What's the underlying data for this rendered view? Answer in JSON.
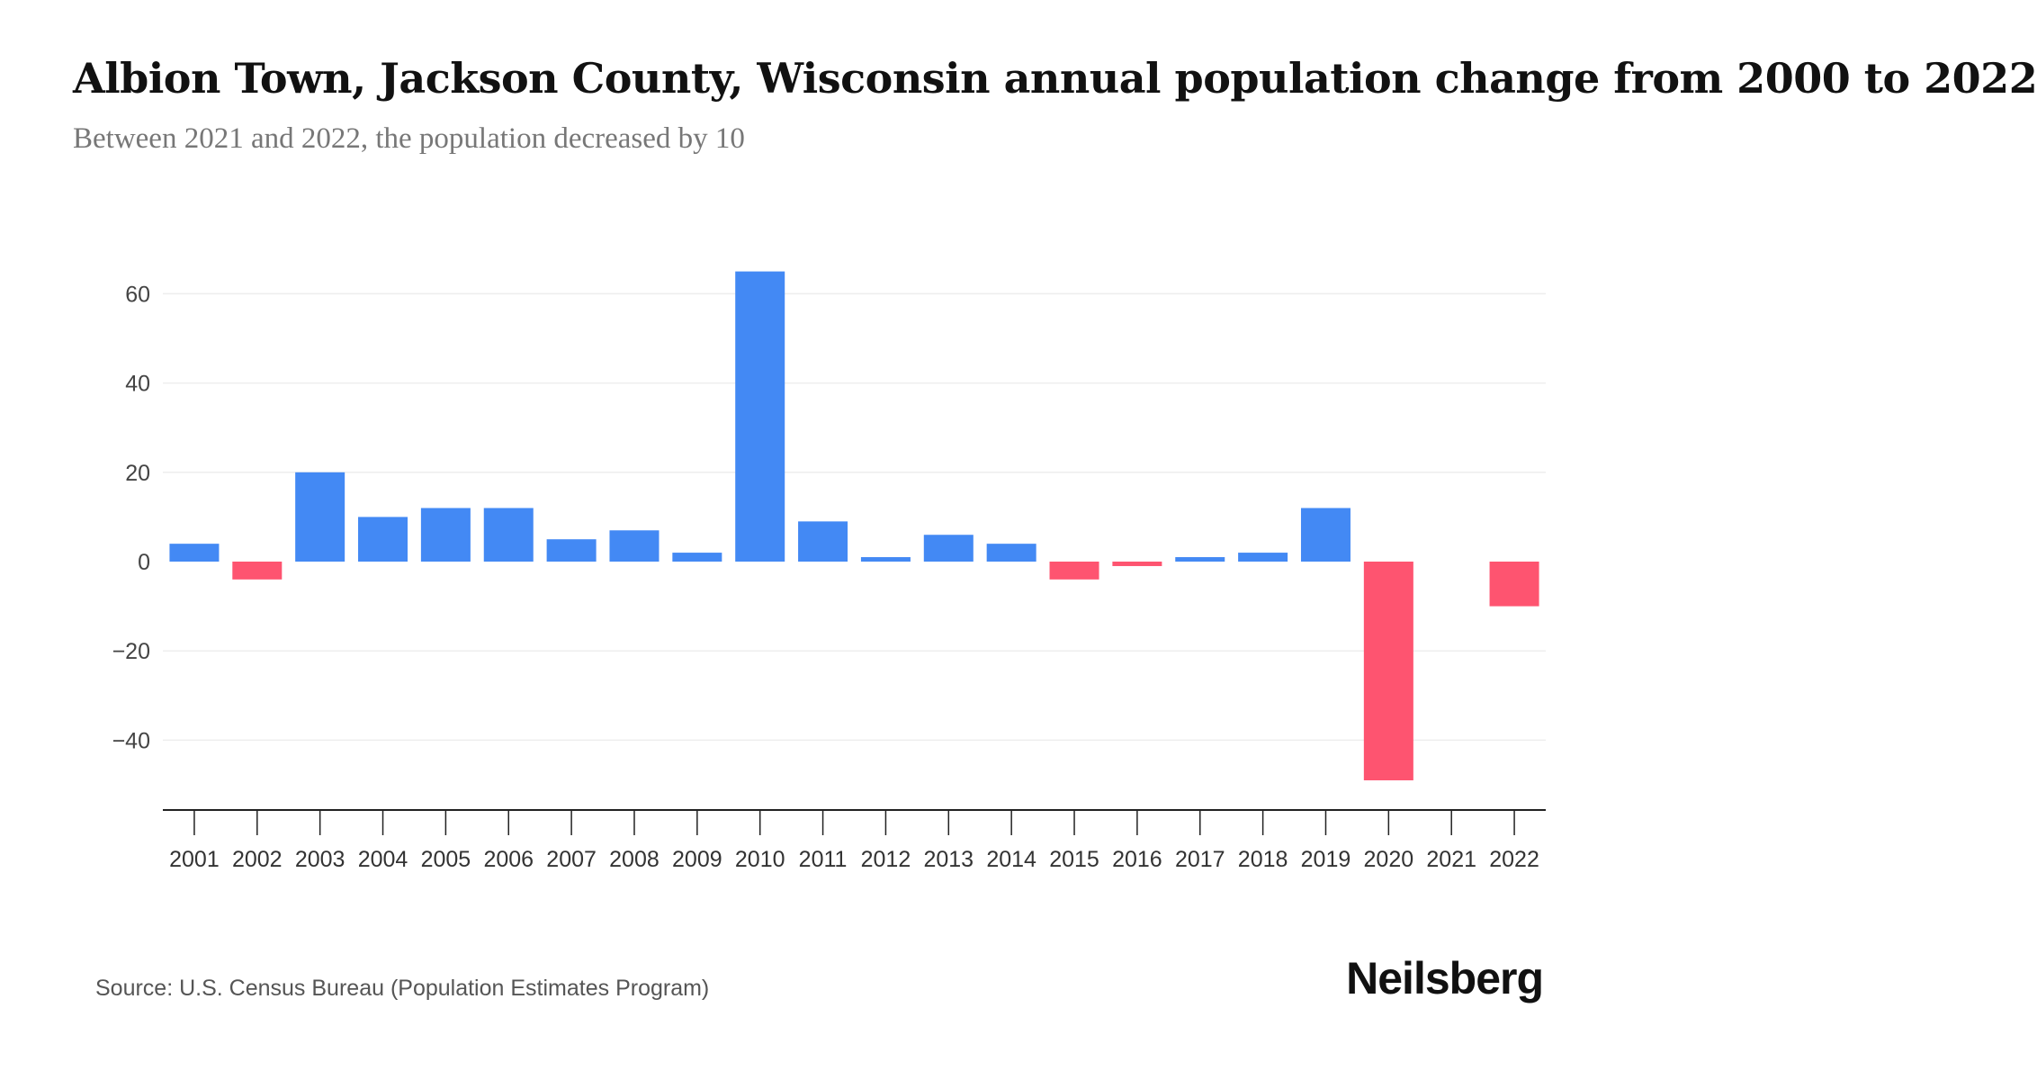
{
  "chart_data": {
    "type": "bar",
    "title": "Albion Town, Jackson County, Wisconsin annual population change from 2000 to 2022",
    "subtitle": "Between 2021 and 2022, the population decreased by 10",
    "xlabel": "",
    "ylabel": "",
    "categories": [
      "2001",
      "2002",
      "2003",
      "2004",
      "2005",
      "2006",
      "2007",
      "2008",
      "2009",
      "2010",
      "2011",
      "2012",
      "2013",
      "2014",
      "2015",
      "2016",
      "2017",
      "2018",
      "2019",
      "2020",
      "2021",
      "2022"
    ],
    "values": [
      4,
      -4,
      20,
      10,
      12,
      12,
      5,
      7,
      2,
      65,
      9,
      1,
      6,
      4,
      -4,
      -1,
      1,
      2,
      12,
      -49,
      0,
      -10
    ],
    "ylim": [
      -55,
      65
    ],
    "yticks": [
      60,
      40,
      20,
      0,
      -20,
      -40
    ],
    "ytick_labels": [
      "60",
      "40",
      "20",
      "0",
      "−20",
      "−40"
    ],
    "grid": true,
    "colors": {
      "positive": "#4389f4",
      "negative": "#fe5470"
    }
  },
  "source": "Source: U.S. Census Bureau (Population Estimates Program)",
  "logo": "Neilsberg"
}
